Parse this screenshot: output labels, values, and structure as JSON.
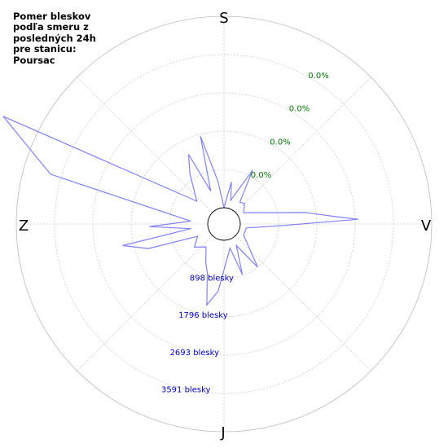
{
  "title_lines": [
    "Pomer bleskov",
    "podľa smeru z",
    "posledných 24h",
    "pre stanicu:",
    "Poursac"
  ],
  "chart_data": {
    "type": "polar-line",
    "title": "Pomer bleskov podľa smeru z posledných 24h pre stanicu: Poursac",
    "direction_labels": [
      "S",
      "V",
      "J",
      "Z"
    ],
    "radial_labels": [
      "898 blesky",
      "1796 blesky",
      "2693 blesky",
      "3591 blesky"
    ],
    "radial_values": [
      898,
      1796,
      2693,
      3591
    ],
    "percent_labels": [
      "0.0%",
      "0.0%",
      "0.0%",
      "0.0%"
    ],
    "rmax": 4489,
    "grid": true,
    "series_color": "#8080ff",
    "label_color_counts": "#0000cc",
    "label_color_percent": "#007700",
    "points": [
      {
        "angle": 0,
        "value": 0
      },
      {
        "angle": 10,
        "value": 620
      },
      {
        "angle": 16,
        "value": 200
      },
      {
        "angle": 28,
        "value": 1050
      },
      {
        "angle": 36,
        "value": 250
      },
      {
        "angle": 45,
        "value": 300
      },
      {
        "angle": 60,
        "value": 150
      },
      {
        "angle": 82,
        "value": 1550
      },
      {
        "angle": 86,
        "value": 2200
      },
      {
        "angle": 88,
        "value": 2770
      },
      {
        "angle": 92,
        "value": 900
      },
      {
        "angle": 100,
        "value": 150
      },
      {
        "angle": 120,
        "value": 150
      },
      {
        "angle": 142,
        "value": 900
      },
      {
        "angle": 150,
        "value": 200
      },
      {
        "angle": 160,
        "value": 880
      },
      {
        "angle": 166,
        "value": 200
      },
      {
        "angle": 185,
        "value": 1200
      },
      {
        "angle": 192,
        "value": 1560
      },
      {
        "angle": 199,
        "value": 820
      },
      {
        "angle": 205,
        "value": 630
      },
      {
        "angle": 218,
        "value": 300
      },
      {
        "angle": 232,
        "value": 500
      },
      {
        "angle": 245,
        "value": 300
      },
      {
        "angle": 252,
        "value": 1480
      },
      {
        "angle": 258,
        "value": 2050
      },
      {
        "angle": 262,
        "value": 400
      },
      {
        "angle": 268,
        "value": 1370
      },
      {
        "angle": 275,
        "value": 400
      },
      {
        "angle": 286,
        "value": 3850
      },
      {
        "angle": 296,
        "value": 5380
      },
      {
        "angle": 310,
        "value": 450
      },
      {
        "angle": 326,
        "value": 1050
      },
      {
        "angle": 333,
        "value": 1450
      },
      {
        "angle": 338,
        "value": 450
      },
      {
        "angle": 345,
        "value": 1750
      },
      {
        "angle": 352,
        "value": 630
      },
      {
        "angle": 360,
        "value": 0
      }
    ]
  }
}
